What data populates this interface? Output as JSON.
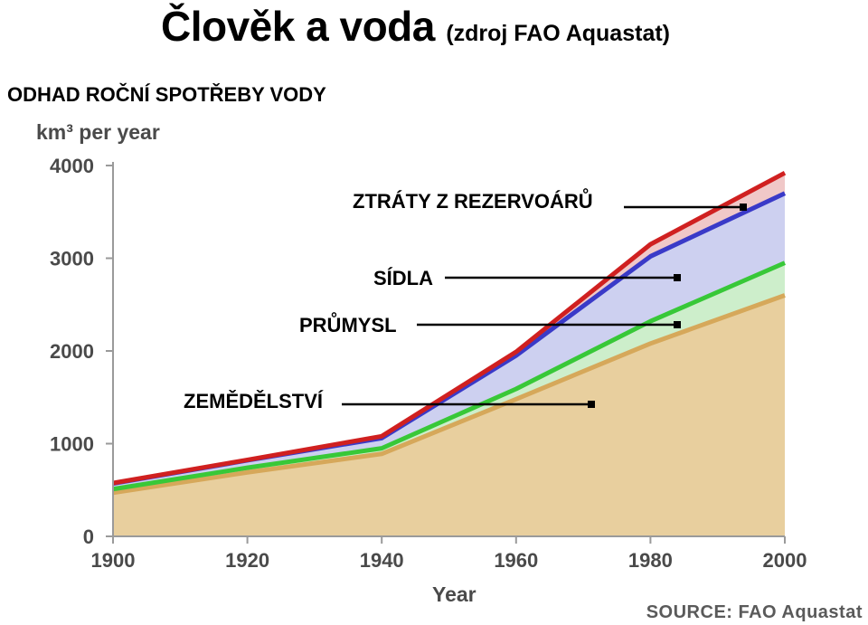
{
  "header": {
    "title": "Člověk a voda",
    "title_source": "(zdroj FAO Aquastat)",
    "subtitle": "ODHAD ROČNÍ SPOTŘEBY VODY"
  },
  "chart_data": {
    "type": "area",
    "ylabel": "km³ per year",
    "xlabel": "Year",
    "source": "SOURCE: FAO Aquastat",
    "x": [
      1900,
      1920,
      1940,
      1960,
      1980,
      2000
    ],
    "xlim": [
      1900,
      2000
    ],
    "ylim": [
      0,
      4000
    ],
    "x_ticks": [
      "1900",
      "1920",
      "1940",
      "1960",
      "1980",
      "2000"
    ],
    "y_ticks": [
      "0",
      "1000",
      "2000",
      "3000",
      "4000"
    ],
    "stacked_totals": [
      {
        "name": "ZEMĚDĚLSTVÍ",
        "color": "#d6a85a",
        "fill": "#e8cf9e",
        "values": [
          470,
          690,
          890,
          1480,
          2080,
          2600
        ]
      },
      {
        "name": "PRŮMYSL",
        "color": "#38c838",
        "fill": "#cdeecb",
        "values": [
          510,
          740,
          950,
          1590,
          2320,
          2950
        ]
      },
      {
        "name": "SÍDLA",
        "color": "#3a3ac8",
        "fill": "#cdd0f0",
        "values": [
          570,
          820,
          1060,
          1950,
          3020,
          3700
        ]
      },
      {
        "name": "ZTRÁTY Z REZERVOÁRŮ",
        "color": "#d02020",
        "fill": "#f0c8c8",
        "values": [
          575,
          825,
          1080,
          1990,
          3150,
          3920
        ]
      }
    ],
    "grid": false,
    "legend": "callout labels"
  },
  "callouts": {
    "reservoirs": "ZTRÁTY Z REZERVOÁRŮ",
    "settlements": "SÍDLA",
    "industry": "PRŮMYSL",
    "agriculture": "ZEMĚDĚLSTVÍ"
  }
}
